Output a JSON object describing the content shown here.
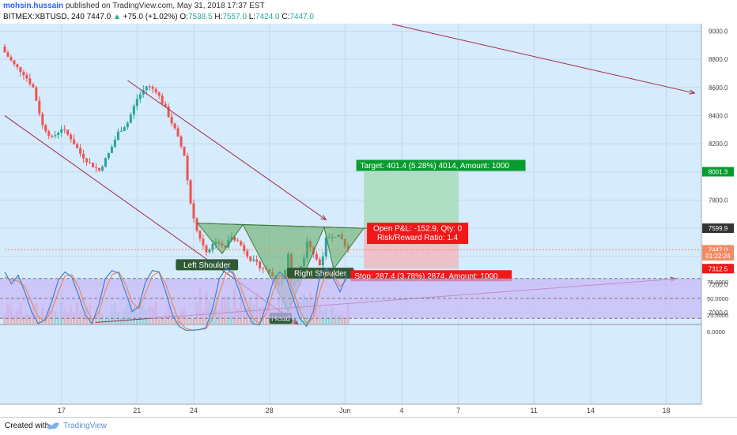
{
  "header": {
    "author": "mohsin.hussain",
    "published": "published on TradingView.com, May 31, 2018 17:37 EST",
    "symbol": "BITMEX:XBTUSD, 240",
    "last": "7447.0",
    "change_arrow": "▲",
    "change": "+75.0 (+1.02%)",
    "ohlc_o_label": "O:",
    "ohlc_o": "7538.5",
    "ohlc_h_label": "H:",
    "ohlc_h": "7557.0",
    "ohlc_l_label": "L:",
    "ohlc_l": "7424.0",
    "ohlc_c_label": "C:",
    "ohlc_c": "7447.0"
  },
  "footer": {
    "created_with": "Created with",
    "brand": "TradingView"
  },
  "colors": {
    "chart_bg": "#d6ebfc",
    "up": "#26a69a",
    "down": "#ef5350",
    "trendline": "#a52a4a",
    "pattern_fill": "#5fa85a",
    "target_fill": "#a8dcb8",
    "stop_fill": "#f2b8bf",
    "target_label": "#089b2f",
    "stop_label": "#f01818",
    "stoch_band": "#c9b8f8",
    "stoch_k": "#3f7fd0",
    "stoch_d": "#ec8a5a"
  },
  "chart_data": [
    {
      "type": "candlestick",
      "symbol": "BITMEX:XBTUSD",
      "interval": "240",
      "x_axis": {
        "tick_labels": [
          "17",
          "21",
          "24",
          "28",
          "Jun",
          "4",
          "7",
          "11",
          "14",
          "18"
        ],
        "tick_days": [
          17,
          21,
          24,
          28,
          32,
          35,
          38,
          42,
          45,
          49
        ]
      },
      "y_axis": {
        "range": [
          7000,
          9000
        ],
        "tick_labels": [
          "9000.0",
          "8800.0",
          "8600.0",
          "8400.0",
          "8200.0",
          "8000.0",
          "7800.0",
          "7600.0",
          "7400.0",
          "7200.0",
          "7000.0"
        ],
        "price_tags": [
          {
            "id": "target",
            "value": 8001.3,
            "text": "8001.3",
            "color": "#089b2f"
          },
          {
            "id": "entry",
            "value": 7599.9,
            "text": "7599.9",
            "color": "#333333"
          },
          {
            "id": "last",
            "value": 7447.0,
            "text": "7447.0",
            "color": "#f28c64"
          },
          {
            "id": "timer",
            "value": 7404,
            "text": "01:22:24",
            "color": "#f28c64"
          },
          {
            "id": "stop",
            "value": 7312.5,
            "text": "7312.5",
            "color": "#f01818"
          }
        ]
      },
      "close_path": [
        [
          14.0,
          8850
        ],
        [
          14.5,
          8760
        ],
        [
          15.0,
          8700
        ],
        [
          15.5,
          8600
        ],
        [
          16.0,
          8330
        ],
        [
          16.5,
          8240
        ],
        [
          17.0,
          8310
        ],
        [
          17.5,
          8240
        ],
        [
          18.0,
          8130
        ],
        [
          18.5,
          8060
        ],
        [
          19.0,
          8010
        ],
        [
          19.5,
          8130
        ],
        [
          20.0,
          8280
        ],
        [
          20.5,
          8350
        ],
        [
          21.0,
          8520
        ],
        [
          21.5,
          8610
        ],
        [
          22.0,
          8580
        ],
        [
          22.5,
          8450
        ],
        [
          23.0,
          8300
        ],
        [
          23.5,
          8120
        ],
        [
          23.8,
          7800
        ],
        [
          24.2,
          7560
        ],
        [
          24.7,
          7430
        ],
        [
          25.2,
          7520
        ],
        [
          25.6,
          7450
        ],
        [
          26.0,
          7550
        ],
        [
          26.5,
          7480
        ],
        [
          27.0,
          7380
        ],
        [
          27.5,
          7330
        ],
        [
          28.0,
          7290
        ],
        [
          28.5,
          7200
        ],
        [
          28.8,
          7280
        ],
        [
          29.0,
          7420
        ],
        [
          29.2,
          7150
        ],
        [
          29.4,
          7250
        ],
        [
          29.8,
          7380
        ],
        [
          30.0,
          7520
        ],
        [
          30.4,
          7400
        ],
        [
          30.7,
          7330
        ],
        [
          31.0,
          7520
        ],
        [
          31.4,
          7560
        ],
        [
          31.8,
          7530
        ],
        [
          32.1,
          7447
        ]
      ],
      "volume": "histogram along the bottom of the price pane, green on up candles and red on down candles",
      "annotations": {
        "pattern": "inverse head and shoulders",
        "labels": [
          "Left Shoulder",
          "Head",
          "Right Shoulder"
        ],
        "trendlines": 4
      },
      "position": {
        "target": {
          "text": "Target: 401.4 (5.28%) 4014, Amount: 1000",
          "price": 8001.3
        },
        "entry": {
          "text_1": "Open P&L: -152.9, Qty: 0",
          "text_2": "Risk/Reward Ratio: 1.4",
          "price": 7599.9
        },
        "stop": {
          "text": "Stop: 287.4 (3.78%) 2874, Amount: 1000",
          "price": 7312.5
        }
      }
    },
    {
      "type": "line",
      "indicator": "stochastic",
      "y_axis": {
        "range": [
          0,
          100
        ],
        "tick_labels": [
          "100.0000",
          "75.0000",
          "50.0000",
          "25.0000",
          "0.0000"
        ]
      },
      "band": [
        20,
        80
      ],
      "series": [
        {
          "id": "k",
          "values": [
            90,
            72,
            85,
            60,
            30,
            12,
            18,
            45,
            78,
            90,
            82,
            55,
            25,
            12,
            40,
            80,
            92,
            88,
            60,
            30,
            38,
            75,
            92,
            90,
            60,
            25,
            8,
            2,
            2,
            3,
            6,
            35,
            80,
            95,
            88,
            60,
            30,
            12,
            10,
            40,
            75,
            90,
            80,
            50,
            20,
            8,
            30,
            85,
            95,
            80,
            60,
            85
          ]
        },
        {
          "id": "d",
          "values": [
            82,
            78,
            76,
            68,
            45,
            22,
            16,
            32,
            60,
            84,
            86,
            68,
            38,
            18,
            28,
            62,
            86,
            90,
            72,
            44,
            34,
            58,
            84,
            90,
            72,
            42,
            15,
            5,
            2,
            3,
            4,
            20,
            58,
            88,
            91,
            72,
            44,
            20,
            12,
            28,
            60,
            84,
            84,
            62,
            32,
            12,
            20,
            62,
            90,
            86,
            68,
            78
          ]
        }
      ]
    }
  ]
}
